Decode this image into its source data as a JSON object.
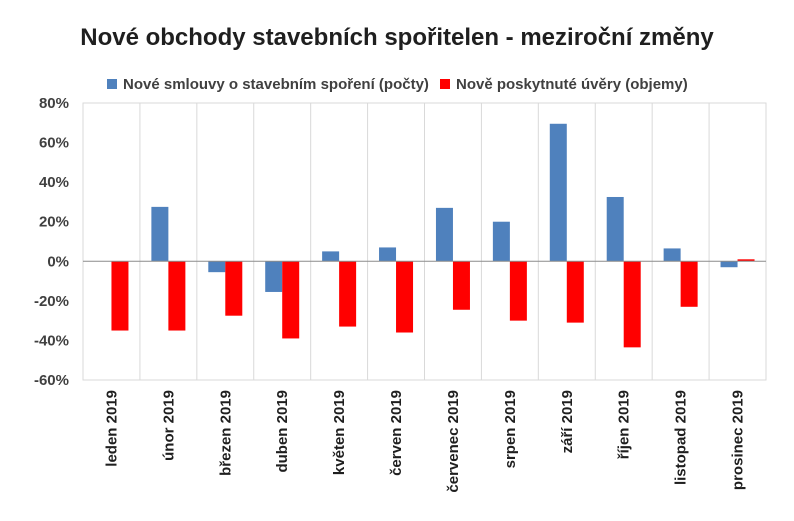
{
  "chart_data": {
    "type": "bar",
    "title": "Nové obchody stavebních spořitelen - meziroční změny",
    "categories": [
      "leden 2019",
      "únor 2019",
      "březen 2019",
      "duben 2019",
      "květen 2019",
      "červen 2019",
      "červenec 2019",
      "srpen 2019",
      "září 2019",
      "říjen 2019",
      "listopad 2019",
      "prosinec 2019"
    ],
    "series": [
      {
        "name": "Nové smlouvy o stavebním spoření (počty)",
        "color": "#4f81bd",
        "values": [
          0,
          27.5,
          -5.5,
          -15.5,
          5,
          7,
          27,
          20,
          69.5,
          32.5,
          6.5,
          -3
        ]
      },
      {
        "name": "Nově poskytnuté úvěry (objemy)",
        "color": "#ff0000",
        "values": [
          -35,
          -35,
          -27.5,
          -39,
          -33,
          -36,
          -24.5,
          -30,
          -31,
          -43.5,
          -23,
          1
        ]
      }
    ],
    "ylim": [
      -60,
      80
    ],
    "yticks": [
      80,
      60,
      40,
      20,
      0,
      -20,
      -40,
      -60
    ],
    "ytick_labels": [
      "80%",
      "60%",
      "40%",
      "20%",
      "0%",
      "-20%",
      "-40%",
      "-60%"
    ],
    "grid": "vertical category separators",
    "legend": "top"
  }
}
